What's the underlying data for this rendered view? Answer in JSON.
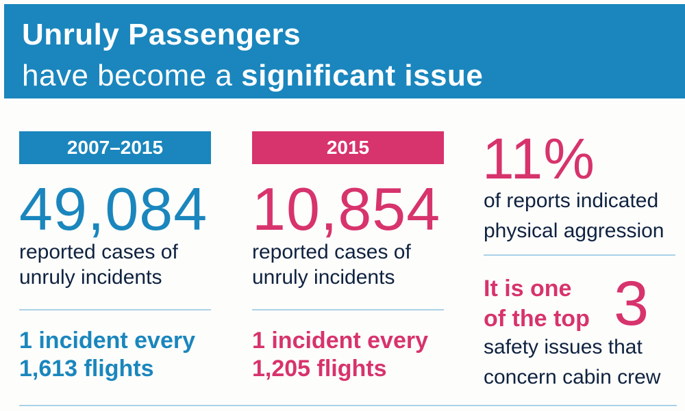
{
  "header": {
    "title_line1": "Unruly Passengers",
    "title_line2_prefix": "have become a ",
    "title_line2_bold": "significant issue"
  },
  "colors": {
    "blue": "#1a86bd",
    "pink": "#d7336c",
    "navy": "#0f2240",
    "rule": "#a9d2e8"
  },
  "col1": {
    "tag": "2007–2015",
    "number": "49,084",
    "desc_line1": "reported cases of",
    "desc_line2": "unruly incidents",
    "rate_line1": "1 incident every",
    "rate_line2": "1,613  flights"
  },
  "col2": {
    "tag": "2015",
    "number": "10,854",
    "desc_line1": "reported cases of",
    "desc_line2": "unruly incidents",
    "rate_line1": "1 incident every",
    "rate_line2": "1,205  flights"
  },
  "col3": {
    "percent": "11%",
    "desc_line1": "of reports indicated",
    "desc_line2": "physical aggression",
    "top_line1": "It is one",
    "top_line2": "of the top",
    "top_number": "3",
    "tail_line1": "safety issues that",
    "tail_line2": "concern cabin crew"
  }
}
